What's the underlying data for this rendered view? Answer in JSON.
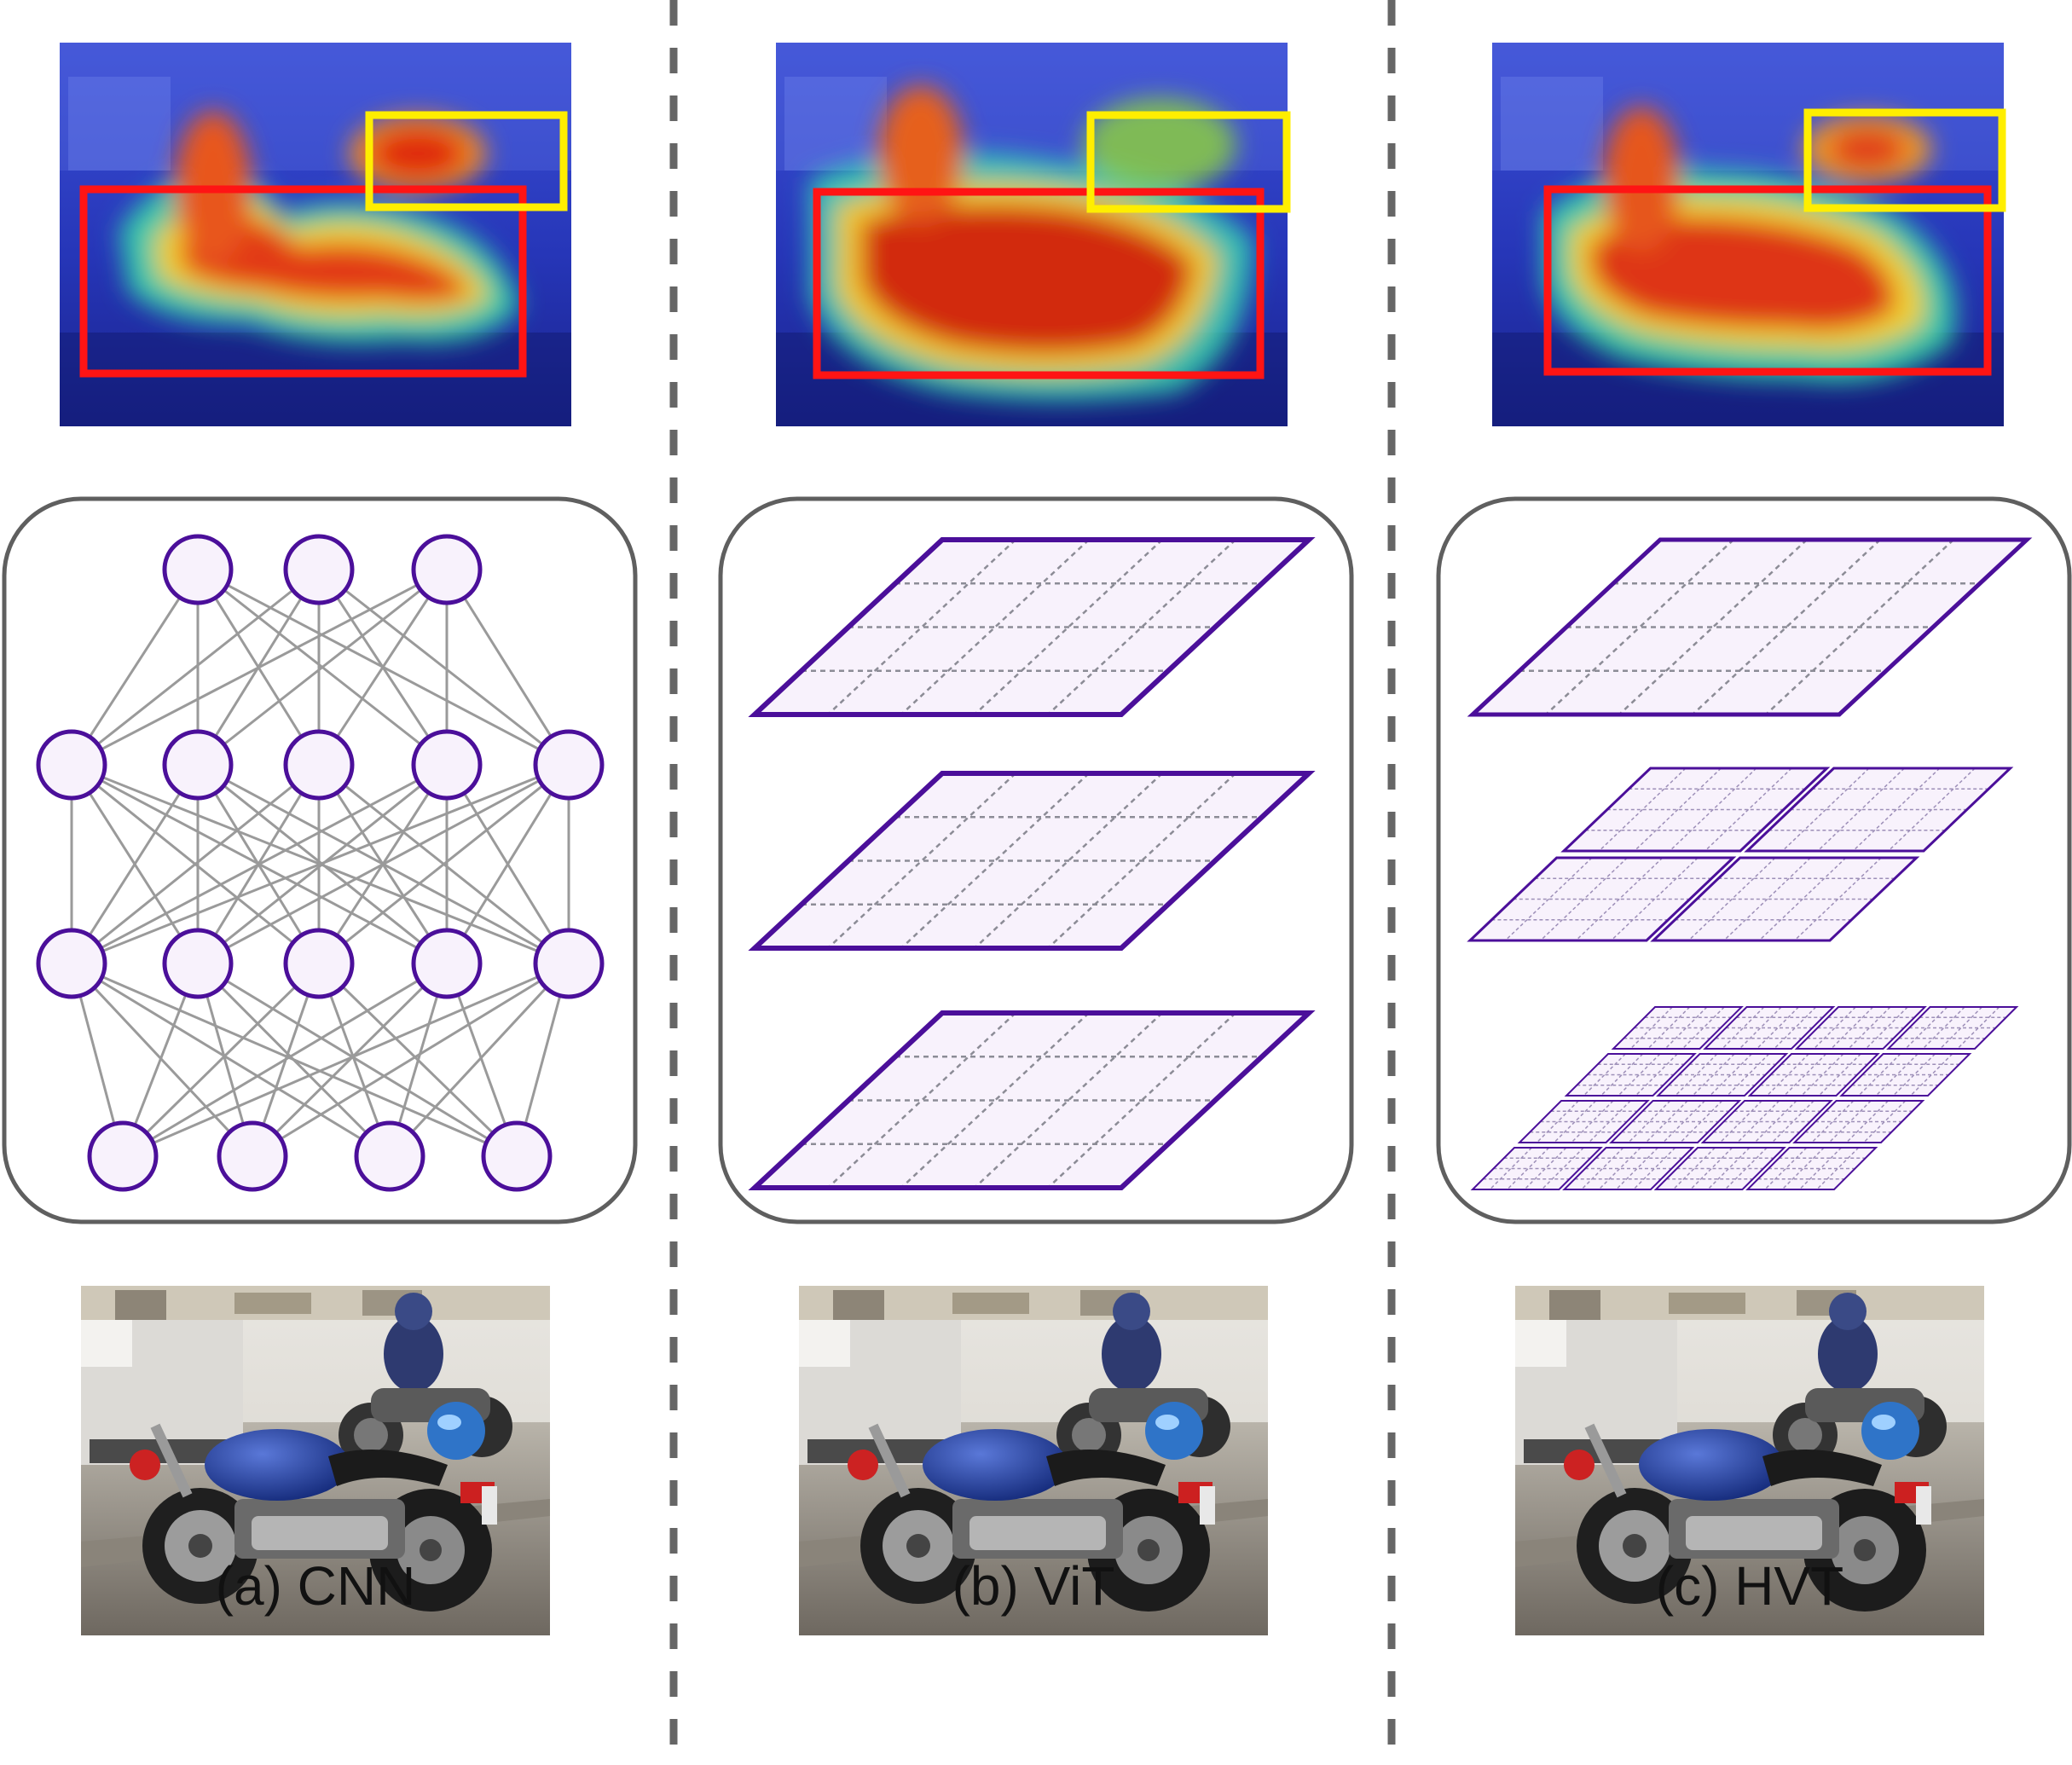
{
  "colors": {
    "purple": "#4b0f9a",
    "node_fill": "#f8f2fc",
    "edge": "#9a9a9a",
    "panel_border": "#5f5f5f",
    "divider": "#666666",
    "box_red": "#ff1414",
    "box_yellow": "#ffee00"
  },
  "columns": [
    {
      "caption": "(a) CNN",
      "heatmap_icon": "attention-heatmap-image",
      "architecture": "neural-network-layers",
      "photo_icon": "motorcycle-photo",
      "layer_sizes": [
        3,
        5,
        5,
        4
      ]
    },
    {
      "caption": "(b) ViT",
      "heatmap_icon": "attention-heatmap-image",
      "architecture": "uniform-patch-grids",
      "photo_icon": "motorcycle-photo",
      "grid_splits": [
        1,
        1,
        1
      ]
    },
    {
      "caption": "(c) HVT",
      "heatmap_icon": "attention-heatmap-image",
      "architecture": "hierarchical-patch-grids",
      "photo_icon": "motorcycle-photo",
      "grid_splits": [
        1,
        2,
        4
      ]
    }
  ]
}
